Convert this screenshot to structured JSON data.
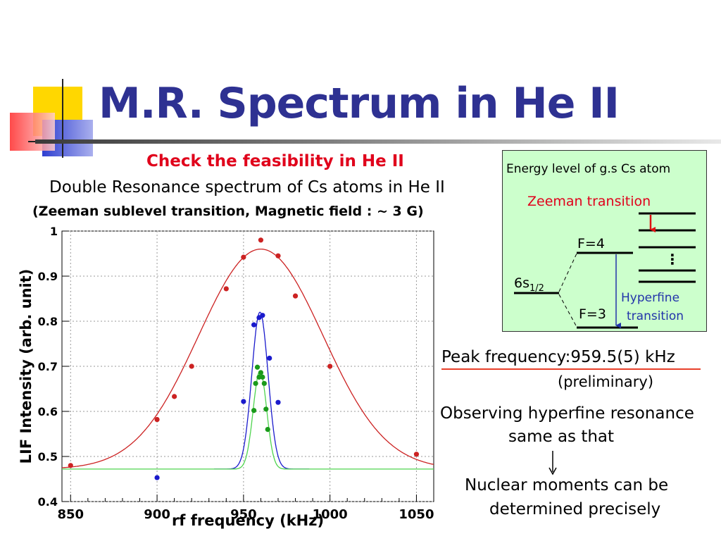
{
  "slide": {
    "title": "M.R. Spectrum in He II",
    "subheading": "Check the feasibility in He II",
    "description": "Double Resonance spectrum of Cs atoms in He II",
    "conditions": "(Zeeman sublevel transition, Magnetic field : ~ 3 G)",
    "peak_frequency": "Peak frequency:959.5(5) kHz",
    "preliminary": "(preliminary)",
    "observation_line1": "Observing hyperfine resonance",
    "observation_line2": "same as that",
    "conclusion_line1": "Nuclear moments can be",
    "conclusion_line2": "determined precisely",
    "colors": {
      "title": "#2e3192",
      "subheading": "#e0001b",
      "accent_rule": "#e8402a",
      "box_fill": "#ccffcc"
    }
  },
  "energy_diagram": {
    "title": "Energy level of g.s Cs atom",
    "zeeman_label": "Zeeman transition",
    "ground_label": "6s",
    "ground_subscript": "1/2",
    "upper_label": "F=4",
    "lower_label": "F=3",
    "hyperfine_line1": "Hyperfine",
    "hyperfine_line2": "transition",
    "ellipsis": "⋮"
  },
  "chart_data": {
    "type": "scatter",
    "xlabel": "rf frequency (kHz)",
    "ylabel": "LIF Intensity (arb. unit)",
    "xlim": [
      845,
      1060
    ],
    "ylim": [
      0.4,
      1.0
    ],
    "xticks": [
      850,
      900,
      950,
      1000,
      1050
    ],
    "xtick_labels": [
      "850",
      "900",
      "950",
      "1000",
      "1050"
    ],
    "yticks": [
      0.4,
      0.5,
      0.6,
      0.7,
      0.8,
      0.9,
      1.0
    ],
    "ytick_labels": [
      "0.4",
      "0.5",
      "0.6",
      "0.7",
      "0.8",
      "0.9",
      "1"
    ],
    "grid": true,
    "series": [
      {
        "color": "#cc2222",
        "points": [
          [
            850,
            0.48
          ],
          [
            900,
            0.582
          ],
          [
            910,
            0.633
          ],
          [
            920,
            0.7
          ],
          [
            940,
            0.872
          ],
          [
            950,
            0.942
          ],
          [
            960,
            0.98
          ],
          [
            970,
            0.945
          ],
          [
            980,
            0.856
          ],
          [
            1000,
            0.7
          ],
          [
            1050,
            0.505
          ]
        ],
        "fit": {
          "baseline": 0.472,
          "amplitude": 0.488,
          "center": 960,
          "sigma": 36,
          "x_range": [
            845,
            1060
          ]
        }
      },
      {
        "color": "#1a1acc",
        "points": [
          [
            900,
            0.453
          ],
          [
            950,
            0.622
          ],
          [
            956,
            0.792
          ],
          [
            959,
            0.808
          ],
          [
            961,
            0.813
          ],
          [
            965,
            0.718
          ],
          [
            970,
            0.62
          ]
        ],
        "fit": {
          "baseline": 0.472,
          "amplitude": 0.348,
          "center": 959.5,
          "sigma": 4.7,
          "x_range": [
            933,
            988
          ]
        }
      },
      {
        "color": "#1a9a1a",
        "points": [
          [
            956,
            0.602
          ],
          [
            957,
            0.662
          ],
          [
            958,
            0.698
          ],
          [
            959,
            0.676
          ],
          [
            960,
            0.686
          ],
          [
            961,
            0.676
          ],
          [
            962,
            0.662
          ],
          [
            963,
            0.605
          ],
          [
            964,
            0.56
          ]
        ],
        "fit": {
          "baseline": 0.472,
          "amplitude": 0.218,
          "center": 959.5,
          "sigma": 3.9,
          "x_range": [
            845,
            1060
          ]
        }
      }
    ]
  }
}
